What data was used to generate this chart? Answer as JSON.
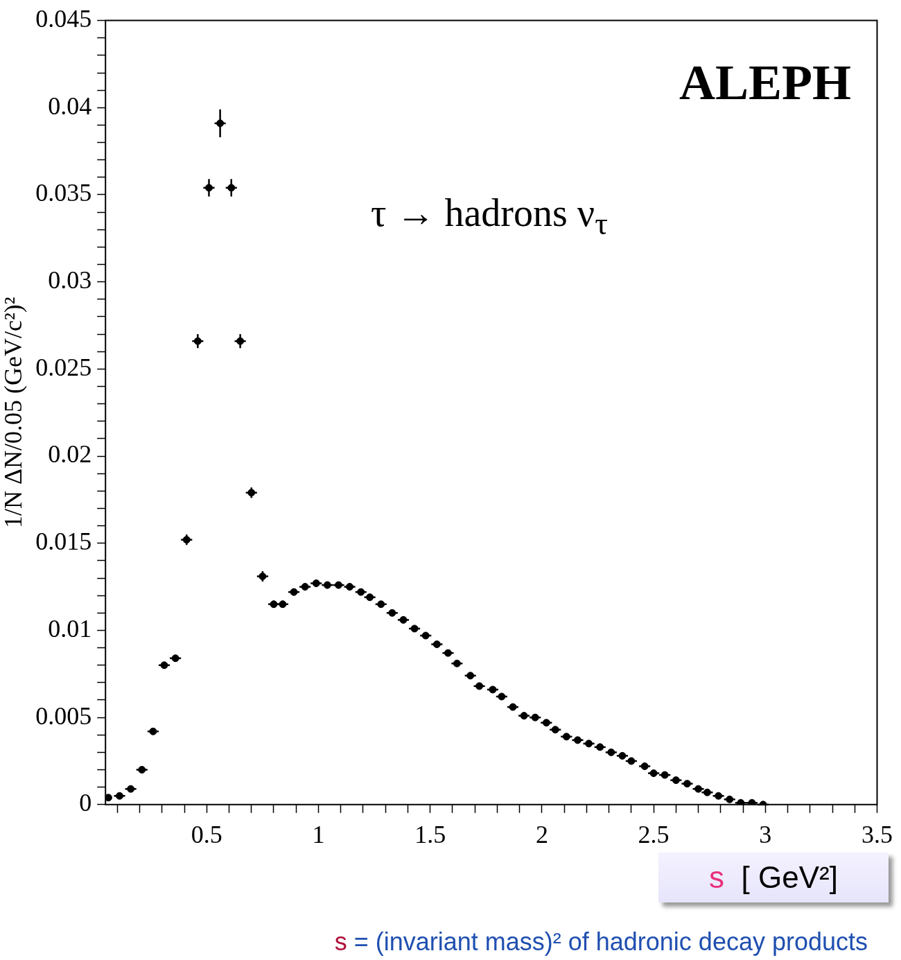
{
  "chart_data": {
    "type": "scatter",
    "xlabel": "s  [ GeV²]",
    "ylabel": "1/N ΔN/0.05 (GeV/c²)²",
    "annotations": [
      "ALEPH",
      "τ → hadrons ν$_{τ}$",
      "s = (invariant mass)² of hadronic decay products"
    ],
    "x": [
      0.06,
      0.11,
      0.16,
      0.21,
      0.26,
      0.31,
      0.36,
      0.41,
      0.46,
      0.51,
      0.56,
      0.61,
      0.65,
      0.7,
      0.75,
      0.8,
      0.84,
      0.89,
      0.94,
      0.99,
      1.04,
      1.09,
      1.14,
      1.19,
      1.23,
      1.28,
      1.33,
      1.38,
      1.43,
      1.48,
      1.53,
      1.58,
      1.62,
      1.68,
      1.72,
      1.78,
      1.82,
      1.87,
      1.92,
      1.97,
      2.02,
      2.06,
      2.11,
      2.16,
      2.21,
      2.26,
      2.31,
      2.36,
      2.4,
      2.46,
      2.5,
      2.55,
      2.6,
      2.65,
      2.7,
      2.74,
      2.79,
      2.84,
      2.89,
      2.94,
      2.99
    ],
    "series": [
      {
        "color": "#000000",
        "values": [
          0.0004,
          0.0005,
          0.0009,
          0.002,
          0.0042,
          0.008,
          0.0084,
          0.0152,
          0.0266,
          0.0354,
          0.0391,
          0.0354,
          0.0266,
          0.0179,
          0.0131,
          0.0115,
          0.0115,
          0.0122,
          0.0125,
          0.0127,
          0.0126,
          0.0126,
          0.0125,
          0.0122,
          0.0119,
          0.0115,
          0.011,
          0.0106,
          0.0101,
          0.0097,
          0.0092,
          0.0087,
          0.0081,
          0.0074,
          0.0068,
          0.0066,
          0.0062,
          0.0056,
          0.0051,
          0.005,
          0.0047,
          0.0043,
          0.0039,
          0.0037,
          0.0035,
          0.0033,
          0.003,
          0.0028,
          0.0025,
          0.0022,
          0.0018,
          0.0017,
          0.0014,
          0.0012,
          0.0009,
          0.0007,
          0.0005,
          0.0003,
          0.0001,
          0.0001,
          0
        ],
        "errors": [
          null,
          null,
          null,
          null,
          null,
          null,
          null,
          0.0003,
          0.0004,
          0.0005,
          0.0008,
          0.0005,
          0.0004,
          0.0003,
          0.0003,
          0.0002,
          0.0002,
          0.0002,
          0.0002,
          0.0002,
          0.0002,
          0.0002,
          0.0002,
          null,
          null,
          null,
          null,
          null,
          null,
          null,
          null,
          null,
          null,
          null,
          null,
          null,
          null,
          null,
          null,
          null,
          null,
          null,
          null,
          null,
          null,
          null,
          null,
          null,
          null,
          null,
          null,
          null,
          null,
          null,
          null,
          null,
          null,
          null,
          null,
          null,
          null
        ],
        "xerrors": [
          null,
          0.025,
          0.025,
          0.025,
          0.025,
          0.025,
          0.025,
          0.025,
          0.025,
          0.025,
          0.025,
          0.025,
          0.025,
          0.025,
          0.025,
          0.025,
          0.025,
          0.025,
          0.025,
          0.025,
          0.025,
          0.025,
          0.025,
          0.025,
          0.025,
          0.025,
          0.025,
          0.025,
          0.025,
          0.025,
          0.025,
          0.025,
          0.025,
          0.025,
          0.025,
          0.025,
          0.025,
          0.025,
          0.025,
          0.025,
          0.025,
          0.025,
          0.025,
          0.025,
          0.025,
          0.025,
          0.025,
          0.025,
          0.025,
          0.025,
          0.025,
          0.025,
          0.025,
          0.025,
          0.025,
          0.025,
          0.025,
          0.025,
          0.025,
          0.025,
          0.025
        ]
      }
    ],
    "marker": "circle",
    "xlim": [
      0.047,
      3.5
    ],
    "xticks": [
      {
        "value": 0.1,
        "label": null
      },
      {
        "value": 0.2,
        "label": null
      },
      {
        "value": 0.3,
        "label": null
      },
      {
        "value": 0.4,
        "label": null
      },
      0.5,
      {
        "value": 0.6,
        "label": null
      },
      {
        "value": 0.7,
        "label": null
      },
      {
        "value": 0.8,
        "label": null
      },
      {
        "value": 0.9,
        "label": null
      },
      1,
      {
        "value": 1.1,
        "label": null
      },
      {
        "value": 1.2,
        "label": null
      },
      {
        "value": 1.3,
        "label": null
      },
      {
        "value": 1.4,
        "label": null
      },
      1.5,
      {
        "value": 1.6,
        "label": null
      },
      {
        "value": 1.7,
        "label": null
      },
      {
        "value": 1.8,
        "label": null
      },
      {
        "value": 1.9,
        "label": null
      },
      2,
      {
        "value": 2.1,
        "label": null
      },
      {
        "value": 2.2,
        "label": null
      },
      {
        "value": 2.3,
        "label": null
      },
      {
        "value": 2.4,
        "label": null
      },
      2.5,
      {
        "value": 2.6,
        "label": null
      },
      {
        "value": 2.7,
        "label": null
      },
      {
        "value": 2.8,
        "label": null
      },
      {
        "value": 2.9,
        "label": null
      },
      3,
      {
        "value": 3.1,
        "label": null
      },
      {
        "value": 3.2,
        "label": null
      },
      {
        "value": 3.3,
        "label": null
      },
      {
        "value": 3.4,
        "label": null
      },
      3.5
    ],
    "ylim": [
      0,
      0.045
    ],
    "yticks": [
      0,
      {
        "value": 0.001,
        "label": null
      },
      {
        "value": 0.002,
        "label": null
      },
      {
        "value": 0.003,
        "label": null
      },
      {
        "value": 0.004,
        "label": null
      },
      0.005,
      {
        "value": 0.006,
        "label": null
      },
      {
        "value": 0.007,
        "label": null
      },
      {
        "value": 0.008,
        "label": null
      },
      {
        "value": 0.009,
        "label": null
      },
      0.01,
      {
        "value": 0.011,
        "label": null
      },
      {
        "value": 0.012,
        "label": null
      },
      {
        "value": 0.013,
        "label": null
      },
      {
        "value": 0.014,
        "label": null
      },
      0.015,
      {
        "value": 0.016,
        "label": null
      },
      {
        "value": 0.017,
        "label": null
      },
      {
        "value": 0.018,
        "label": null
      },
      {
        "value": 0.019,
        "label": null
      },
      0.02,
      {
        "value": 0.021,
        "label": null
      },
      {
        "value": 0.022,
        "label": null
      },
      {
        "value": 0.023,
        "label": null
      },
      {
        "value": 0.024,
        "label": null
      },
      0.025,
      {
        "value": 0.026,
        "label": null
      },
      {
        "value": 0.027,
        "label": null
      },
      {
        "value": 0.028,
        "label": null
      },
      {
        "value": 0.029,
        "label": null
      },
      0.03,
      {
        "value": 0.031,
        "label": null
      },
      {
        "value": 0.032,
        "label": null
      },
      {
        "value": 0.033,
        "label": null
      },
      {
        "value": 0.034,
        "label": null
      },
      0.035,
      {
        "value": 0.036,
        "label": null
      },
      {
        "value": 0.037,
        "label": null
      },
      {
        "value": 0.038,
        "label": null
      },
      {
        "value": 0.039,
        "label": null
      },
      0.04,
      {
        "value": 0.041,
        "label": null
      },
      {
        "value": 0.042,
        "label": null
      },
      {
        "value": 0.043,
        "label": null
      },
      {
        "value": 0.044,
        "label": null
      },
      0.045
    ]
  }
}
